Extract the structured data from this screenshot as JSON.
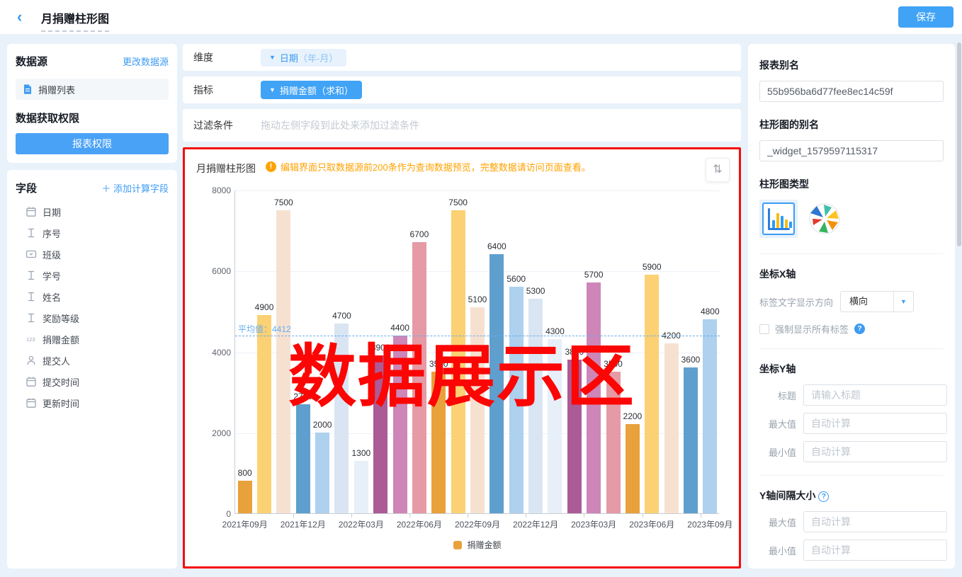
{
  "icons": {
    "back": "‹",
    "caret_down": "▼",
    "sort": "⇅",
    "warning_mark": "!",
    "help_mark": "?",
    "add_plus": "＋"
  },
  "header": {
    "title": "月捐赠柱形图",
    "save_label": "保存"
  },
  "left_panel": {
    "datasource": {
      "title": "数据源",
      "change_link": "更改数据源",
      "source_name": "捐赠列表",
      "permission_title": "数据获取权限",
      "permission_button": "报表权限"
    },
    "fields": {
      "title": "字段",
      "add_link": "添加计算字段",
      "items": [
        {
          "icon": "calendar",
          "label": "日期"
        },
        {
          "icon": "text",
          "label": "序号"
        },
        {
          "icon": "select",
          "label": "班级"
        },
        {
          "icon": "text",
          "label": "学号"
        },
        {
          "icon": "text",
          "label": "姓名"
        },
        {
          "icon": "text",
          "label": "奖励等级"
        },
        {
          "icon": "number",
          "label": "捐赠金额"
        },
        {
          "icon": "person",
          "label": "提交人"
        },
        {
          "icon": "calendar",
          "label": "提交时间"
        },
        {
          "icon": "calendar",
          "label": "更新时间"
        }
      ]
    }
  },
  "config": {
    "dimension": {
      "label": "维度",
      "tag_main": "日期",
      "tag_suffix": "（年-月）"
    },
    "metric": {
      "label": "指标",
      "tag": "捐赠金额（求和）"
    },
    "filter": {
      "label": "过滤条件",
      "placeholder": "拖动左侧字段到此处来添加过滤条件"
    }
  },
  "chart_panel": {
    "title": "月捐赠柱形图",
    "warning": "编辑界面只取数据源前200条作为查询数据预览，完整数据请访问页面查看。",
    "overlay_text": "数据展示区"
  },
  "chart_data": {
    "type": "bar",
    "title": "月捐赠柱形图",
    "categories": [
      "2021年09月",
      "2021年10月",
      "2021年11月",
      "2021年12月",
      "2022年01月",
      "2022年02月",
      "2022年03月",
      "2022年04月",
      "2022年05月",
      "2022年06月",
      "2022年07月",
      "2022年08月",
      "2022年09月",
      "2022年10月",
      "2022年11月",
      "2022年12月",
      "2023年01月",
      "2023年02月",
      "2023年03月",
      "2023年04月",
      "2023年05月",
      "2023年06月",
      "2023年07月",
      "2023年08月",
      "2023年09月"
    ],
    "values": [
      800,
      4900,
      7500,
      2700,
      2000,
      4700,
      1300,
      3900,
      4400,
      6700,
      3500,
      7500,
      5100,
      6400,
      5600,
      5300,
      4300,
      3800,
      5700,
      3500,
      2200,
      5900,
      4200,
      3600,
      4800
    ],
    "series_name": "捐赠金额",
    "average": 4412,
    "average_label": "平均值：4412",
    "ylim": [
      0,
      8000
    ],
    "y_ticks": [
      0,
      2000,
      4000,
      6000,
      8000
    ],
    "x_label_every": 3,
    "x_tick_labels_visible": [
      "2021年09月",
      "2021年12月",
      "2022年03月",
      "2022年06月",
      "2022年09月",
      "2022年12月",
      "2023年03月",
      "2023年06月",
      "2023年09月"
    ],
    "bar_colors": [
      "#E9A13B",
      "#FBD173",
      "#F6E1D1",
      "#5F9FCE",
      "#ADD1EE",
      "#D9E5F3",
      "#E7EFF9",
      "#AB5B96",
      "#CD86B7",
      "#E59AA5"
    ],
    "legend_color": "#E9A13B",
    "legend_position": "bottom",
    "grid": true
  },
  "right_panel": {
    "report_alias": {
      "label": "报表别名",
      "value": "55b956ba6d77fee8ec14c59f"
    },
    "widget_alias": {
      "label": "柱形图的别名",
      "value": "_widget_1579597115317"
    },
    "chart_type": {
      "label": "柱形图类型"
    },
    "x_axis": {
      "title": "坐标X轴",
      "direction_label": "标签文字显示方向",
      "direction_value": "横向",
      "force_labels": "强制显示所有标签"
    },
    "y_axis": {
      "title": "坐标Y轴",
      "rows": [
        {
          "label": "标题",
          "placeholder": "请输入标题"
        },
        {
          "label": "最大值",
          "placeholder": "自动计算"
        },
        {
          "label": "最小值",
          "placeholder": "自动计算"
        }
      ]
    },
    "y_interval": {
      "title": "Y轴间隔大小",
      "rows": [
        {
          "label": "最大值",
          "placeholder": "自动计算"
        },
        {
          "label": "最小值",
          "placeholder": "自动计算"
        }
      ]
    }
  }
}
